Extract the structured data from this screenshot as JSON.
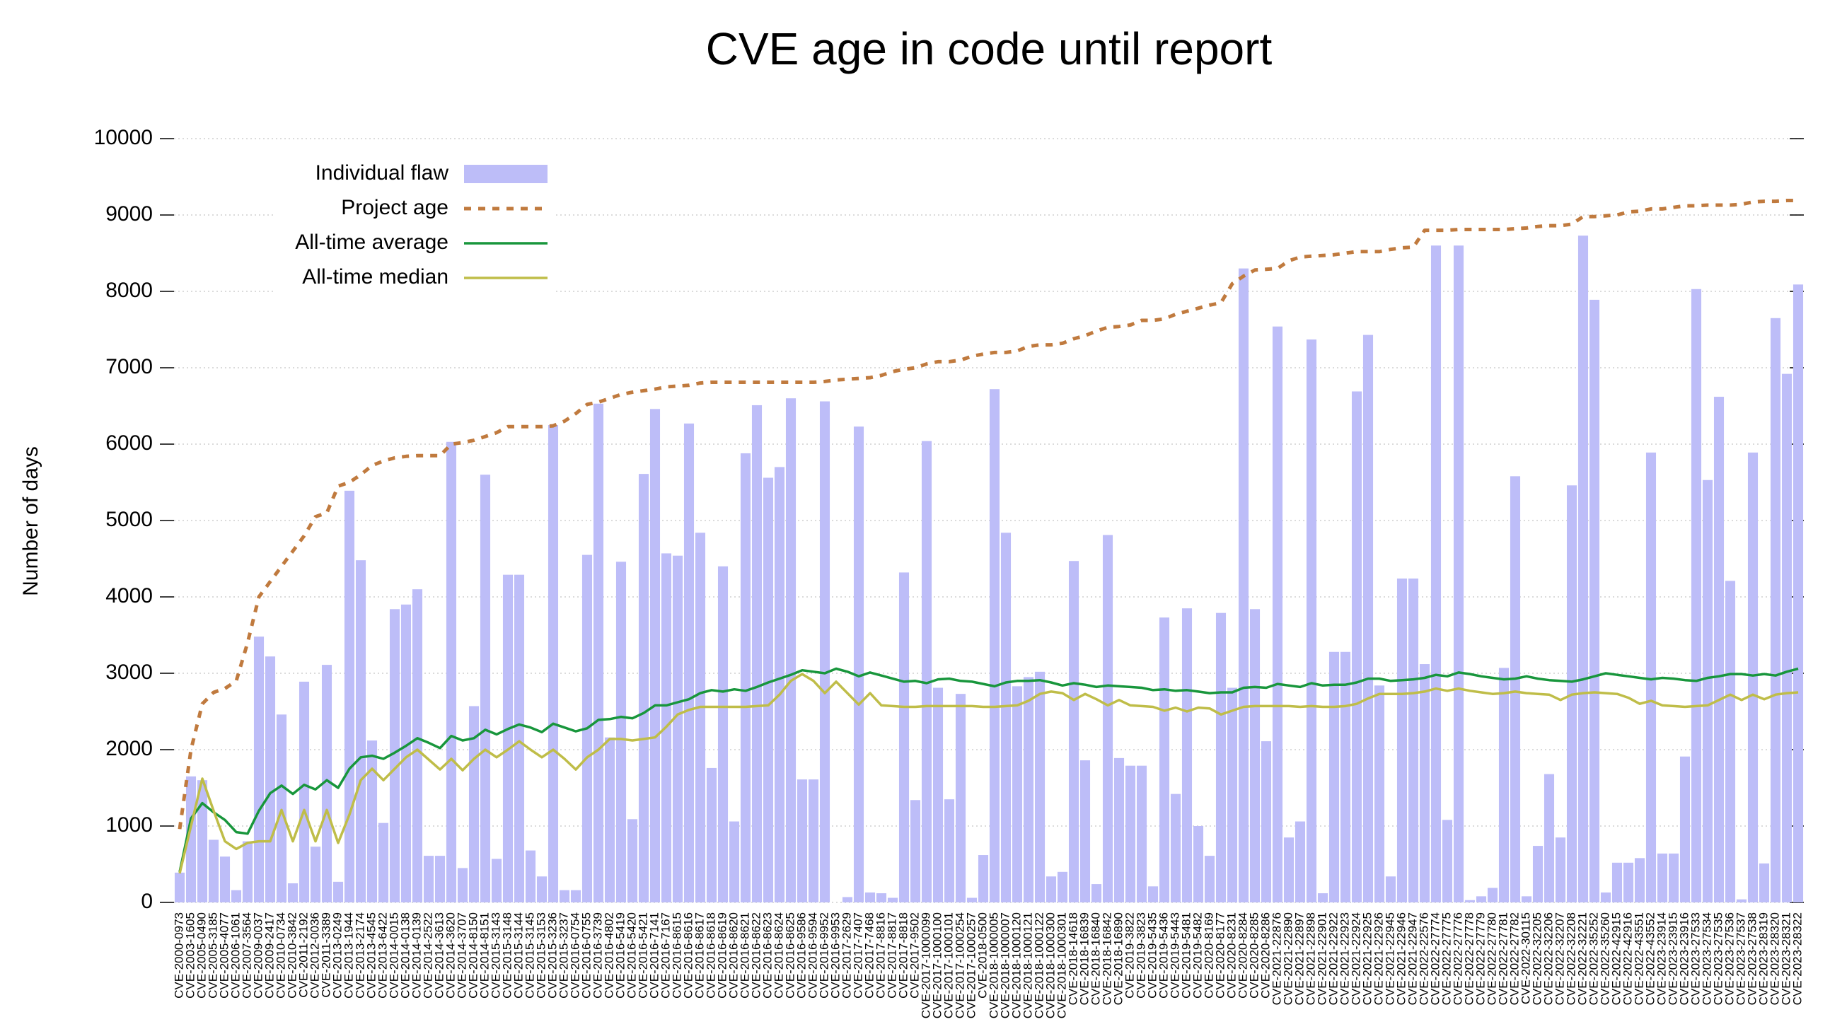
{
  "chart_data": {
    "type": "bar",
    "title": "CVE age in code until report",
    "y_label": "Number of days",
    "ylim": [
      0,
      10000
    ],
    "yticks": [
      0,
      1000,
      2000,
      3000,
      4000,
      5000,
      6000,
      7000,
      8000,
      9000,
      10000
    ],
    "grid": true,
    "legend": "upper left",
    "categories": [
      "CVE-2000-0973",
      "CVE-2003-1605",
      "CVE-2005-0490",
      "CVE-2005-3185",
      "CVE-2005-4077",
      "CVE-2006-1061",
      "CVE-2007-3564",
      "CVE-2009-0037",
      "CVE-2009-2417",
      "CVE-2010-0734",
      "CVE-2010-3842",
      "CVE-2011-2192",
      "CVE-2012-0036",
      "CVE-2011-3389",
      "CVE-2013-0249",
      "CVE-2013-1944",
      "CVE-2013-2174",
      "CVE-2013-4545",
      "CVE-2013-6422",
      "CVE-2014-0015",
      "CVE-2014-0138",
      "CVE-2014-0139",
      "CVE-2014-2522",
      "CVE-2014-3613",
      "CVE-2014-3620",
      "CVE-2014-3707",
      "CVE-2014-8150",
      "CVE-2014-8151",
      "CVE-2015-3143",
      "CVE-2015-3148",
      "CVE-2015-3144",
      "CVE-2015-3145",
      "CVE-2015-3153",
      "CVE-2015-3236",
      "CVE-2015-3237",
      "CVE-2016-0754",
      "CVE-2016-0755",
      "CVE-2016-3739",
      "CVE-2016-4802",
      "CVE-2016-5419",
      "CVE-2016-5420",
      "CVE-2016-5421",
      "CVE-2016-7141",
      "CVE-2016-7167",
      "CVE-2016-8615",
      "CVE-2016-8616",
      "CVE-2016-8617",
      "CVE-2016-8618",
      "CVE-2016-8619",
      "CVE-2016-8620",
      "CVE-2016-8621",
      "CVE-2016-8622",
      "CVE-2016-8623",
      "CVE-2016-8624",
      "CVE-2016-8625",
      "CVE-2016-9586",
      "CVE-2016-9594",
      "CVE-2016-9952",
      "CVE-2016-9953",
      "CVE-2017-2629",
      "CVE-2017-7407",
      "CVE-2017-7468",
      "CVE-2017-8816",
      "CVE-2017-8817",
      "CVE-2017-8818",
      "CVE-2017-9502",
      "CVE-2017-1000099",
      "CVE-2017-1000100",
      "CVE-2017-1000101",
      "CVE-2017-1000254",
      "CVE-2017-1000257",
      "CVE-2018-0500",
      "CVE-2018-1000005",
      "CVE-2018-1000007",
      "CVE-2018-1000120",
      "CVE-2018-1000121",
      "CVE-2018-1000122",
      "CVE-2018-1000300",
      "CVE-2018-1000301",
      "CVE-2018-14618",
      "CVE-2018-16839",
      "CVE-2018-16840",
      "CVE-2018-16842",
      "CVE-2018-16890",
      "CVE-2019-3822",
      "CVE-2019-3823",
      "CVE-2019-5435",
      "CVE-2019-5436",
      "CVE-2019-5443",
      "CVE-2019-5481",
      "CVE-2019-5482",
      "CVE-2020-8169",
      "CVE-2020-8177",
      "CVE-2020-8231",
      "CVE-2020-8284",
      "CVE-2020-8285",
      "CVE-2020-8286",
      "CVE-2021-22876",
      "CVE-2021-22890",
      "CVE-2021-22897",
      "CVE-2021-22898",
      "CVE-2021-22901",
      "CVE-2021-22922",
      "CVE-2021-22923",
      "CVE-2021-22924",
      "CVE-2021-22925",
      "CVE-2021-22926",
      "CVE-2021-22945",
      "CVE-2021-22946",
      "CVE-2021-22947",
      "CVE-2022-22576",
      "CVE-2022-27774",
      "CVE-2022-27775",
      "CVE-2022-27776",
      "CVE-2022-27778",
      "CVE-2022-27779",
      "CVE-2022-27780",
      "CVE-2022-27781",
      "CVE-2022-27782",
      "CVE-2022-30115",
      "CVE-2022-32205",
      "CVE-2022-32206",
      "CVE-2022-32207",
      "CVE-2022-32208",
      "CVE-2022-32221",
      "CVE-2022-35252",
      "CVE-2022-35260",
      "CVE-2022-42915",
      "CVE-2022-42916",
      "CVE-2022-43551",
      "CVE-2022-43552",
      "CVE-2023-23914",
      "CVE-2023-23915",
      "CVE-2023-23916",
      "CVE-2023-27533",
      "CVE-2023-27534",
      "CVE-2023-27535",
      "CVE-2023-27536",
      "CVE-2023-27537",
      "CVE-2023-27538",
      "CVE-2023-28319",
      "CVE-2023-28320",
      "CVE-2023-28321",
      "CVE-2023-28322"
    ],
    "series": [
      {
        "name": "Individual flaw",
        "type": "bar",
        "color": "#bdbdf8",
        "values": [
          390,
          1650,
          1600,
          820,
          600,
          160,
          800,
          3480,
          3220,
          2460,
          250,
          2890,
          730,
          3110,
          270,
          5390,
          4480,
          2120,
          1040,
          3840,
          3900,
          4100,
          610,
          610,
          6030,
          450,
          2570,
          5600,
          570,
          4290,
          4290,
          680,
          340,
          6250,
          160,
          160,
          4550,
          6530,
          2160,
          4460,
          1090,
          5610,
          6460,
          4570,
          4540,
          6270,
          4840,
          1760,
          4400,
          1060,
          5880,
          6510,
          5560,
          5700,
          6600,
          1610,
          1610,
          6560,
          0,
          70,
          6230,
          130,
          120,
          60,
          4320,
          1340,
          6040,
          2810,
          1350,
          2730,
          60,
          620,
          6720,
          4840,
          2830,
          2950,
          3020,
          340,
          400,
          4470,
          1860,
          240,
          4810,
          1890,
          1790,
          1790,
          210,
          3730,
          1420,
          3850,
          1000,
          610,
          3790,
          2810,
          8300,
          3840,
          2110,
          7540,
          850,
          1060,
          7370,
          120,
          3280,
          3280,
          6690,
          7430,
          2840,
          340,
          4240,
          4240,
          3120,
          8600,
          1080,
          8600,
          30,
          80,
          190,
          3070,
          5580,
          80,
          740,
          1680,
          850,
          5460,
          8730,
          7890,
          130,
          520,
          520,
          580,
          5890,
          640,
          640,
          1910,
          8030,
          5530,
          6620,
          4210,
          40,
          5890,
          510,
          7650,
          6920,
          8090
        ]
      },
      {
        "name": "Project age",
        "type": "line",
        "linestyle": "dashed",
        "color": "#c07a3e",
        "values": [
          960,
          2000,
          2600,
          2750,
          2800,
          2900,
          3400,
          4000,
          4200,
          4400,
          4600,
          4800,
          5050,
          5100,
          5450,
          5500,
          5600,
          5720,
          5780,
          5820,
          5840,
          5850,
          5850,
          5850,
          6000,
          6020,
          6050,
          6100,
          6150,
          6230,
          6230,
          6230,
          6230,
          6240,
          6300,
          6400,
          6520,
          6550,
          6600,
          6650,
          6680,
          6700,
          6720,
          6750,
          6760,
          6770,
          6800,
          6810,
          6810,
          6810,
          6810,
          6810,
          6810,
          6810,
          6810,
          6810,
          6810,
          6820,
          6840,
          6850,
          6860,
          6870,
          6900,
          6950,
          6980,
          7000,
          7050,
          7080,
          7080,
          7100,
          7150,
          7180,
          7200,
          7200,
          7220,
          7280,
          7300,
          7300,
          7320,
          7380,
          7420,
          7480,
          7530,
          7540,
          7560,
          7620,
          7620,
          7640,
          7700,
          7740,
          7780,
          7820,
          7850,
          8100,
          8200,
          8280,
          8290,
          8300,
          8400,
          8450,
          8460,
          8470,
          8480,
          8500,
          8520,
          8520,
          8520,
          8550,
          8570,
          8580,
          8800,
          8800,
          8800,
          8810,
          8810,
          8810,
          8810,
          8810,
          8820,
          8830,
          8850,
          8860,
          8860,
          8880,
          8980,
          8980,
          8990,
          9000,
          9040,
          9050,
          9080,
          9080,
          9100,
          9120,
          9120,
          9130,
          9130,
          9130,
          9140,
          9170,
          9180,
          9180,
          9190,
          9190
        ]
      },
      {
        "name": "All-time average",
        "type": "line",
        "linestyle": "solid",
        "color": "#18963c",
        "values": [
          400,
          1100,
          1300,
          1180,
          1080,
          920,
          900,
          1200,
          1430,
          1530,
          1420,
          1540,
          1480,
          1600,
          1500,
          1750,
          1900,
          1920,
          1880,
          1960,
          2050,
          2150,
          2090,
          2020,
          2180,
          2120,
          2150,
          2260,
          2200,
          2270,
          2330,
          2290,
          2230,
          2340,
          2290,
          2240,
          2280,
          2390,
          2400,
          2430,
          2410,
          2480,
          2580,
          2580,
          2620,
          2660,
          2740,
          2780,
          2760,
          2790,
          2770,
          2820,
          2880,
          2930,
          2980,
          3040,
          3020,
          3000,
          3060,
          3020,
          2960,
          3010,
          2970,
          2930,
          2890,
          2900,
          2870,
          2920,
          2930,
          2900,
          2890,
          2860,
          2830,
          2880,
          2900,
          2900,
          2910,
          2880,
          2840,
          2870,
          2850,
          2820,
          2840,
          2830,
          2820,
          2810,
          2780,
          2790,
          2770,
          2780,
          2760,
          2740,
          2750,
          2750,
          2810,
          2820,
          2810,
          2860,
          2840,
          2820,
          2870,
          2840,
          2850,
          2850,
          2880,
          2930,
          2930,
          2900,
          2910,
          2920,
          2940,
          2980,
          2960,
          3010,
          2990,
          2960,
          2940,
          2920,
          2930,
          2960,
          2930,
          2910,
          2900,
          2890,
          2920,
          2960,
          3000,
          2980,
          2960,
          2940,
          2920,
          2940,
          2930,
          2910,
          2900,
          2940,
          2960,
          2990,
          2990,
          2970,
          2990,
          2970,
          3020,
          3060
        ]
      },
      {
        "name": "All-time median",
        "type": "line",
        "linestyle": "solid",
        "color": "#bfbd48",
        "values": [
          380,
          1000,
          1620,
          1200,
          800,
          700,
          780,
          800,
          800,
          1210,
          800,
          1210,
          800,
          1210,
          780,
          1150,
          1600,
          1750,
          1600,
          1750,
          1900,
          2000,
          1870,
          1740,
          1880,
          1730,
          1880,
          2000,
          1900,
          2000,
          2110,
          2000,
          1900,
          2000,
          1880,
          1740,
          1900,
          2000,
          2140,
          2140,
          2120,
          2140,
          2160,
          2300,
          2460,
          2520,
          2560,
          2560,
          2560,
          2560,
          2560,
          2570,
          2580,
          2720,
          2900,
          2990,
          2900,
          2740,
          2890,
          2740,
          2590,
          2740,
          2580,
          2570,
          2560,
          2560,
          2570,
          2570,
          2570,
          2570,
          2570,
          2560,
          2560,
          2570,
          2580,
          2640,
          2730,
          2760,
          2740,
          2650,
          2730,
          2660,
          2580,
          2650,
          2580,
          2570,
          2560,
          2510,
          2550,
          2500,
          2550,
          2540,
          2460,
          2510,
          2560,
          2570,
          2570,
          2570,
          2570,
          2560,
          2570,
          2560,
          2560,
          2570,
          2600,
          2670,
          2730,
          2730,
          2730,
          2740,
          2760,
          2800,
          2770,
          2800,
          2770,
          2750,
          2730,
          2740,
          2760,
          2740,
          2730,
          2720,
          2650,
          2720,
          2740,
          2750,
          2740,
          2730,
          2680,
          2600,
          2640,
          2580,
          2570,
          2560,
          2570,
          2580,
          2650,
          2720,
          2650,
          2720,
          2660,
          2720,
          2740,
          2750
        ]
      }
    ]
  }
}
